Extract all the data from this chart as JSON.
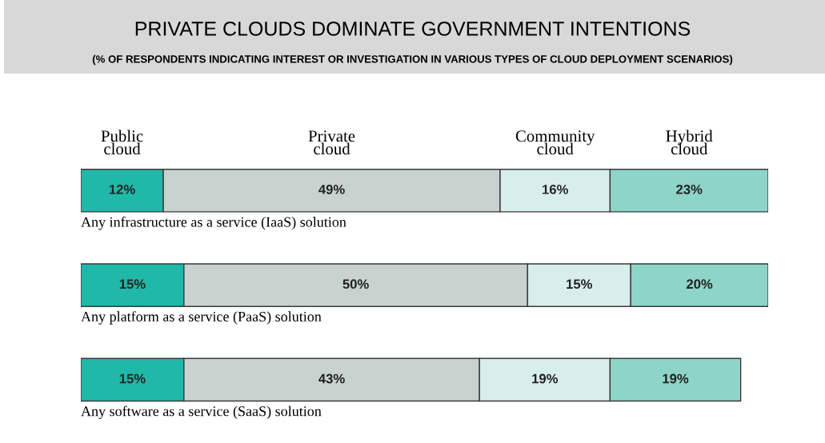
{
  "chart_data": {
    "type": "bar",
    "orientation": "horizontal",
    "stacked": true,
    "title": "PRIVATE CLOUDS DOMINATE GOVERNMENT INTENTIONS",
    "subtitle": "(% OF RESPONDENTS INDICATING INTEREST OR INVESTIGATION IN VARIOUS TYPES OF CLOUD DEPLOYMENT SCENARIOS)",
    "categories": [
      "Any infrastructure as a service (IaaS) solution",
      "Any platform as a service (PaaS) solution",
      "Any software as a service (SaaS) solution"
    ],
    "series": [
      {
        "name": "Public\ncloud",
        "color": "#20b8a8",
        "values": [
          12,
          15,
          15
        ],
        "value_labels": [
          "12%",
          "15%",
          "15%"
        ]
      },
      {
        "name": "Private\ncloud",
        "color": "#c8d2cf",
        "values": [
          49,
          50,
          43
        ],
        "value_labels": [
          "49%",
          "50%",
          "43%"
        ]
      },
      {
        "name": "Community\ncloud",
        "color": "#d8eeea",
        "values": [
          16,
          15,
          19
        ],
        "value_labels": [
          "16%",
          "15%",
          "19%"
        ]
      },
      {
        "name": "Hybrid\ncloud",
        "color": "#8dd5c8",
        "values": [
          23,
          20,
          19
        ],
        "value_labels": [
          "23%",
          "20%",
          "19%"
        ]
      }
    ],
    "legend": "top"
  }
}
